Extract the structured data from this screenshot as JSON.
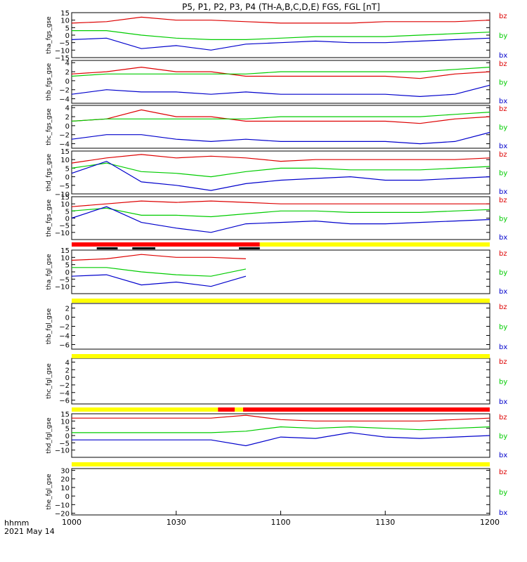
{
  "title": "P5, P1, P2, P3, P4 (TH-A,B,C,D,E) FGS, FGL [nT]",
  "x_axis": {
    "unit_label": "hhmm",
    "date_label": "2021 May 14",
    "ticks": [
      "1000",
      "1030",
      "1100",
      "1130",
      "1200"
    ]
  },
  "colors": {
    "bz": "#dd0000",
    "by": "#00cc00",
    "bx": "#0000cc",
    "bar_fill": "#ff0000",
    "bar_empty": "#ffff00",
    "mode": "#000000"
  },
  "chart_data": [
    {
      "type": "line",
      "ylabel": "tha_fgs_gse",
      "ylim": [
        -15,
        15
      ],
      "yticks": [
        "15",
        "10",
        "5",
        "0",
        "−5",
        "−10",
        "−15"
      ],
      "x": [
        "1000",
        "1010",
        "1020",
        "1030",
        "1040",
        "1050",
        "1100",
        "1110",
        "1120",
        "1130",
        "1140",
        "1150",
        "1200"
      ],
      "series": [
        {
          "name": "bz",
          "values": [
            8,
            9,
            12,
            10,
            10,
            9,
            8,
            8,
            8,
            9,
            9,
            9,
            10
          ]
        },
        {
          "name": "by",
          "values": [
            3,
            3,
            0,
            -2,
            -3,
            -3,
            -2,
            -1,
            -1,
            -1,
            0,
            1,
            2
          ]
        },
        {
          "name": "bx",
          "values": [
            -3,
            -2,
            -9,
            -7,
            -10,
            -6,
            -5,
            -4,
            -5,
            -5,
            -4,
            -3,
            -2
          ]
        }
      ]
    },
    {
      "type": "line",
      "ylabel": "thb_fgs_gse",
      "ylim": [
        -5,
        4.5
      ],
      "yticks": [
        "4",
        "2",
        "0",
        "−2",
        "−4"
      ],
      "x": [
        "1000",
        "1010",
        "1020",
        "1030",
        "1040",
        "1050",
        "1100",
        "1110",
        "1120",
        "1130",
        "1140",
        "1150",
        "1200"
      ],
      "series": [
        {
          "name": "bz",
          "values": [
            1.5,
            2,
            3,
            2,
            2,
            1,
            1,
            1,
            1,
            1,
            0.5,
            1.5,
            2
          ]
        },
        {
          "name": "by",
          "values": [
            1,
            1.5,
            1.5,
            1.5,
            1.5,
            1.5,
            2,
            2,
            2,
            2,
            2,
            2.5,
            3
          ]
        },
        {
          "name": "bx",
          "values": [
            -3,
            -2,
            -2.5,
            -2.5,
            -3,
            -2.5,
            -3,
            -3,
            -3,
            -3,
            -3.5,
            -3,
            -1
          ]
        }
      ]
    },
    {
      "type": "line",
      "ylabel": "thc_fgs_gse",
      "ylim": [
        -5,
        4.5
      ],
      "yticks": [
        "4",
        "2",
        "0",
        "−2",
        "−4"
      ],
      "x": [
        "1000",
        "1010",
        "1020",
        "1030",
        "1040",
        "1050",
        "1100",
        "1110",
        "1120",
        "1130",
        "1140",
        "1150",
        "1200"
      ],
      "series": [
        {
          "name": "bz",
          "values": [
            1,
            1.5,
            3.5,
            2,
            2,
            1,
            1,
            1,
            1,
            1,
            0.5,
            1.5,
            2
          ]
        },
        {
          "name": "by",
          "values": [
            1,
            1.5,
            1.5,
            1.5,
            1.5,
            1.5,
            2,
            2,
            2,
            2,
            2,
            2.5,
            3
          ]
        },
        {
          "name": "bx",
          "values": [
            -3,
            -2,
            -2,
            -3,
            -3.5,
            -3,
            -3.5,
            -3.5,
            -3.5,
            -3.5,
            -4,
            -3.5,
            -1.5
          ]
        }
      ]
    },
    {
      "type": "line",
      "ylabel": "thd_fgs_gse",
      "ylim": [
        -10,
        15
      ],
      "yticks": [
        "15",
        "10",
        "5",
        "0",
        "−5",
        "−10"
      ],
      "x": [
        "1000",
        "1010",
        "1020",
        "1030",
        "1040",
        "1050",
        "1100",
        "1110",
        "1120",
        "1130",
        "1140",
        "1150",
        "1200"
      ],
      "series": [
        {
          "name": "bz",
          "values": [
            8,
            11,
            13,
            11,
            12,
            11,
            9,
            10,
            10,
            10,
            10,
            10,
            11
          ]
        },
        {
          "name": "by",
          "values": [
            5,
            8,
            3,
            2,
            0,
            3,
            5,
            5,
            4,
            4,
            4,
            5,
            6
          ]
        },
        {
          "name": "bx",
          "values": [
            2,
            9,
            -3,
            -5,
            -8,
            -4,
            -2,
            -1,
            0,
            -2,
            -2,
            -1,
            0
          ]
        }
      ]
    },
    {
      "type": "line",
      "ylabel": "the_fgs_gse",
      "ylim": [
        -15,
        15
      ],
      "yticks": [
        "15",
        "10",
        "5",
        "0",
        "−5",
        "−10"
      ],
      "x": [
        "1000",
        "1010",
        "1020",
        "1030",
        "1040",
        "1050",
        "1100",
        "1110",
        "1120",
        "1130",
        "1140",
        "1150",
        "1200"
      ],
      "series": [
        {
          "name": "bz",
          "values": [
            8,
            10,
            12,
            11,
            12,
            11,
            10,
            10,
            10,
            10,
            10,
            10,
            10
          ]
        },
        {
          "name": "by",
          "values": [
            5,
            7,
            2,
            2,
            1,
            3,
            5,
            5,
            4,
            4,
            4,
            5,
            6
          ]
        },
        {
          "name": "bx",
          "values": [
            0,
            8,
            -3,
            -7,
            -10,
            -4,
            -3,
            -2,
            -4,
            -4,
            -3,
            -2,
            -1
          ]
        }
      ]
    },
    {
      "type": "line",
      "ylabel": "tha_fgl_gse",
      "ylim": [
        -15,
        15
      ],
      "yticks": [
        "15",
        "10",
        "5",
        "0",
        "−5",
        "−10"
      ],
      "x": [
        "1000",
        "1010",
        "1020",
        "1030",
        "1040",
        "1050"
      ],
      "series": [
        {
          "name": "bz",
          "values": [
            8,
            9,
            12,
            10,
            10,
            9
          ]
        },
        {
          "name": "by",
          "values": [
            3,
            3,
            0,
            -2,
            -3,
            2
          ]
        },
        {
          "name": "bx",
          "values": [
            -3,
            -2,
            -9,
            -7,
            -10,
            -3
          ]
        }
      ]
    },
    {
      "type": "line",
      "ylabel": "thb_fgl_gse",
      "ylim": [
        -7,
        3
      ],
      "yticks": [
        "2",
        "0",
        "−2",
        "−4",
        "−6"
      ],
      "x": [],
      "series": []
    },
    {
      "type": "line",
      "ylabel": "thc_fgl_gse",
      "ylim": [
        -7,
        5
      ],
      "yticks": [
        "4",
        "2",
        "0",
        "−2",
        "−4",
        "−6"
      ],
      "x": [],
      "series": []
    },
    {
      "type": "line",
      "ylabel": "thd_fgl_gse",
      "ylim": [
        -15,
        15
      ],
      "yticks": [
        "15",
        "10",
        "5",
        "0",
        "−5",
        "−10"
      ],
      "x": [
        "1000",
        "1010",
        "1020",
        "1030",
        "1040",
        "1050",
        "1100",
        "1110",
        "1120",
        "1130",
        "1140",
        "1150",
        "1200"
      ],
      "series": [
        {
          "name": "bz",
          "values": [
            12,
            12,
            12,
            12,
            12,
            14,
            11,
            10,
            10,
            10,
            10,
            11,
            12
          ]
        },
        {
          "name": "by",
          "values": [
            2,
            2,
            2,
            2,
            2,
            3,
            6,
            5,
            6,
            5,
            4,
            5,
            6
          ]
        },
        {
          "name": "bx",
          "values": [
            -3,
            -3,
            -3,
            -3,
            -3,
            -7,
            -1,
            -2,
            2,
            -1,
            -2,
            -1,
            0
          ]
        }
      ]
    },
    {
      "type": "line",
      "ylabel": "the_fgl_gse",
      "ylim": [
        -22,
        32
      ],
      "yticks": [
        "30",
        "20",
        "10",
        "0",
        "−10",
        "−20"
      ],
      "x": [],
      "series": []
    }
  ],
  "legend": [
    "bz",
    "by",
    "bx"
  ]
}
